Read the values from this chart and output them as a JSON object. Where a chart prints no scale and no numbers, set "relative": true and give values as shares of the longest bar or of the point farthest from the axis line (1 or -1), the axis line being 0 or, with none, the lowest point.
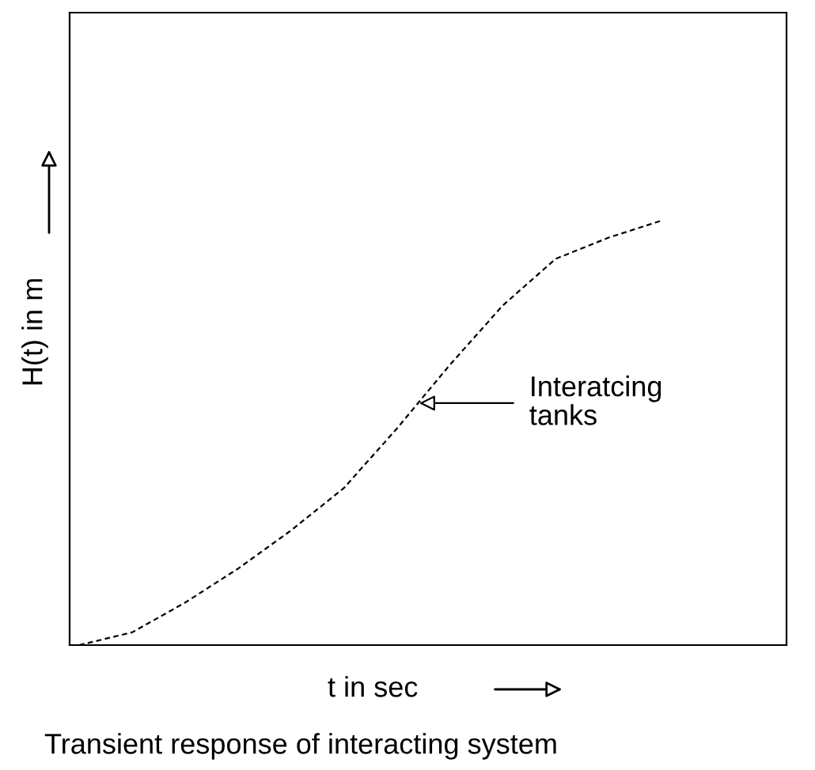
{
  "chart_data": {
    "type": "line",
    "relative": true,
    "title": "Transient response of interacting system",
    "xlabel": "t in sec",
    "ylabel": "H(t) in m",
    "categories": [
      null,
      null,
      null,
      null,
      null,
      null,
      null,
      null,
      null,
      null,
      null,
      null
    ],
    "series": [
      {
        "color": "#000000",
        "values": [
          0,
          0.03,
          0.1,
          0.18,
          0.27,
          0.37,
          0.51,
          0.66,
          0.8,
          0.91,
          0.96,
          1
        ]
      }
    ],
    "line_style": "dashed",
    "marker": "none",
    "grid": false,
    "annotations": [
      "Interatcing\ntanks"
    ]
  }
}
